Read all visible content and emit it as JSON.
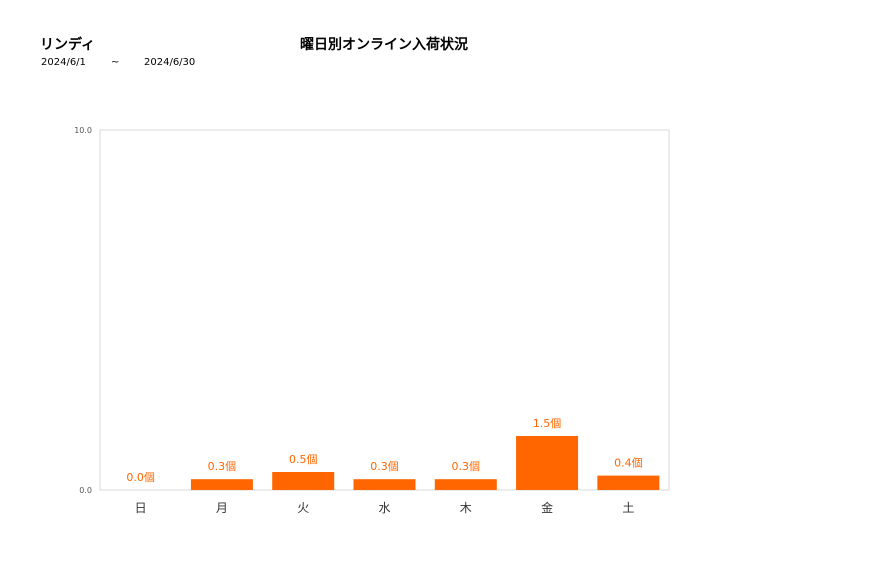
{
  "header": {
    "store_name": "リンディ",
    "date_from": "2024/6/1",
    "date_separator": "~",
    "date_to": "2024/6/30"
  },
  "chart_data": {
    "type": "bar",
    "title": "曜日別オンライン入荷状況",
    "categories": [
      "日",
      "月",
      "火",
      "水",
      "木",
      "金",
      "土"
    ],
    "values": [
      0.0,
      0.3,
      0.5,
      0.3,
      0.3,
      1.5,
      0.4
    ],
    "value_labels": [
      "0.0個",
      "0.3個",
      "0.5個",
      "0.3個",
      "0.3個",
      "1.5個",
      "0.4個"
    ],
    "y_tick_labels": [
      "10.0",
      "0.0"
    ],
    "ylim": [
      0,
      10
    ],
    "xlabel": "",
    "ylabel": "",
    "grid": false,
    "bar_color": "#ff6600"
  }
}
